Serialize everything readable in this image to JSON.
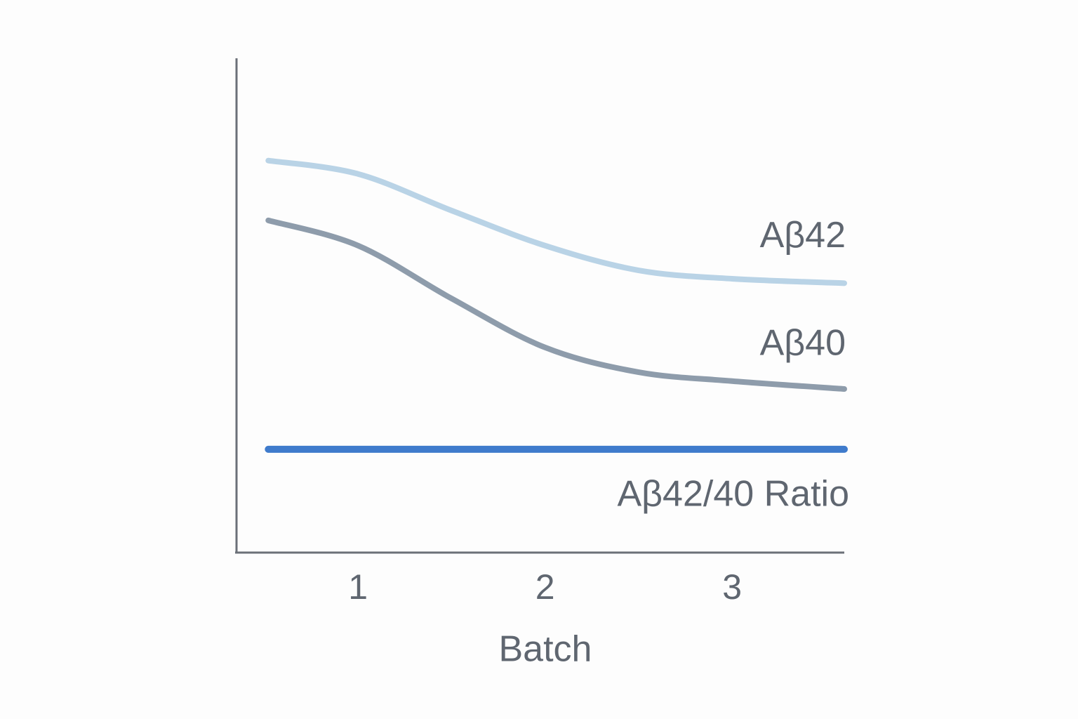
{
  "chart_data": {
    "type": "line",
    "x_label": "Batch",
    "xlim": [
      0.35,
      3.6
    ],
    "xticks": [
      1,
      2,
      3
    ],
    "ylim": [
      0,
      100
    ],
    "x": [
      0.52,
      1,
      1.5,
      2,
      2.5,
      3,
      3.6
    ],
    "series": [
      {
        "name": "Aβ42",
        "color": "#b9d3e6",
        "values": [
          79.3,
          76.6,
          69.2,
          62.1,
          57.1,
          55.4,
          54.5
        ]
      },
      {
        "name": "Aβ40",
        "color": "#8e9cab",
        "values": [
          67.2,
          62.1,
          51.4,
          41.5,
          36.5,
          34.7,
          33.1
        ]
      },
      {
        "name": "Aβ42/40 Ratio",
        "color": "#3f7bcc",
        "values": [
          20.9,
          20.9,
          20.9,
          20.9,
          20.9,
          20.9,
          20.9
        ]
      }
    ]
  }
}
